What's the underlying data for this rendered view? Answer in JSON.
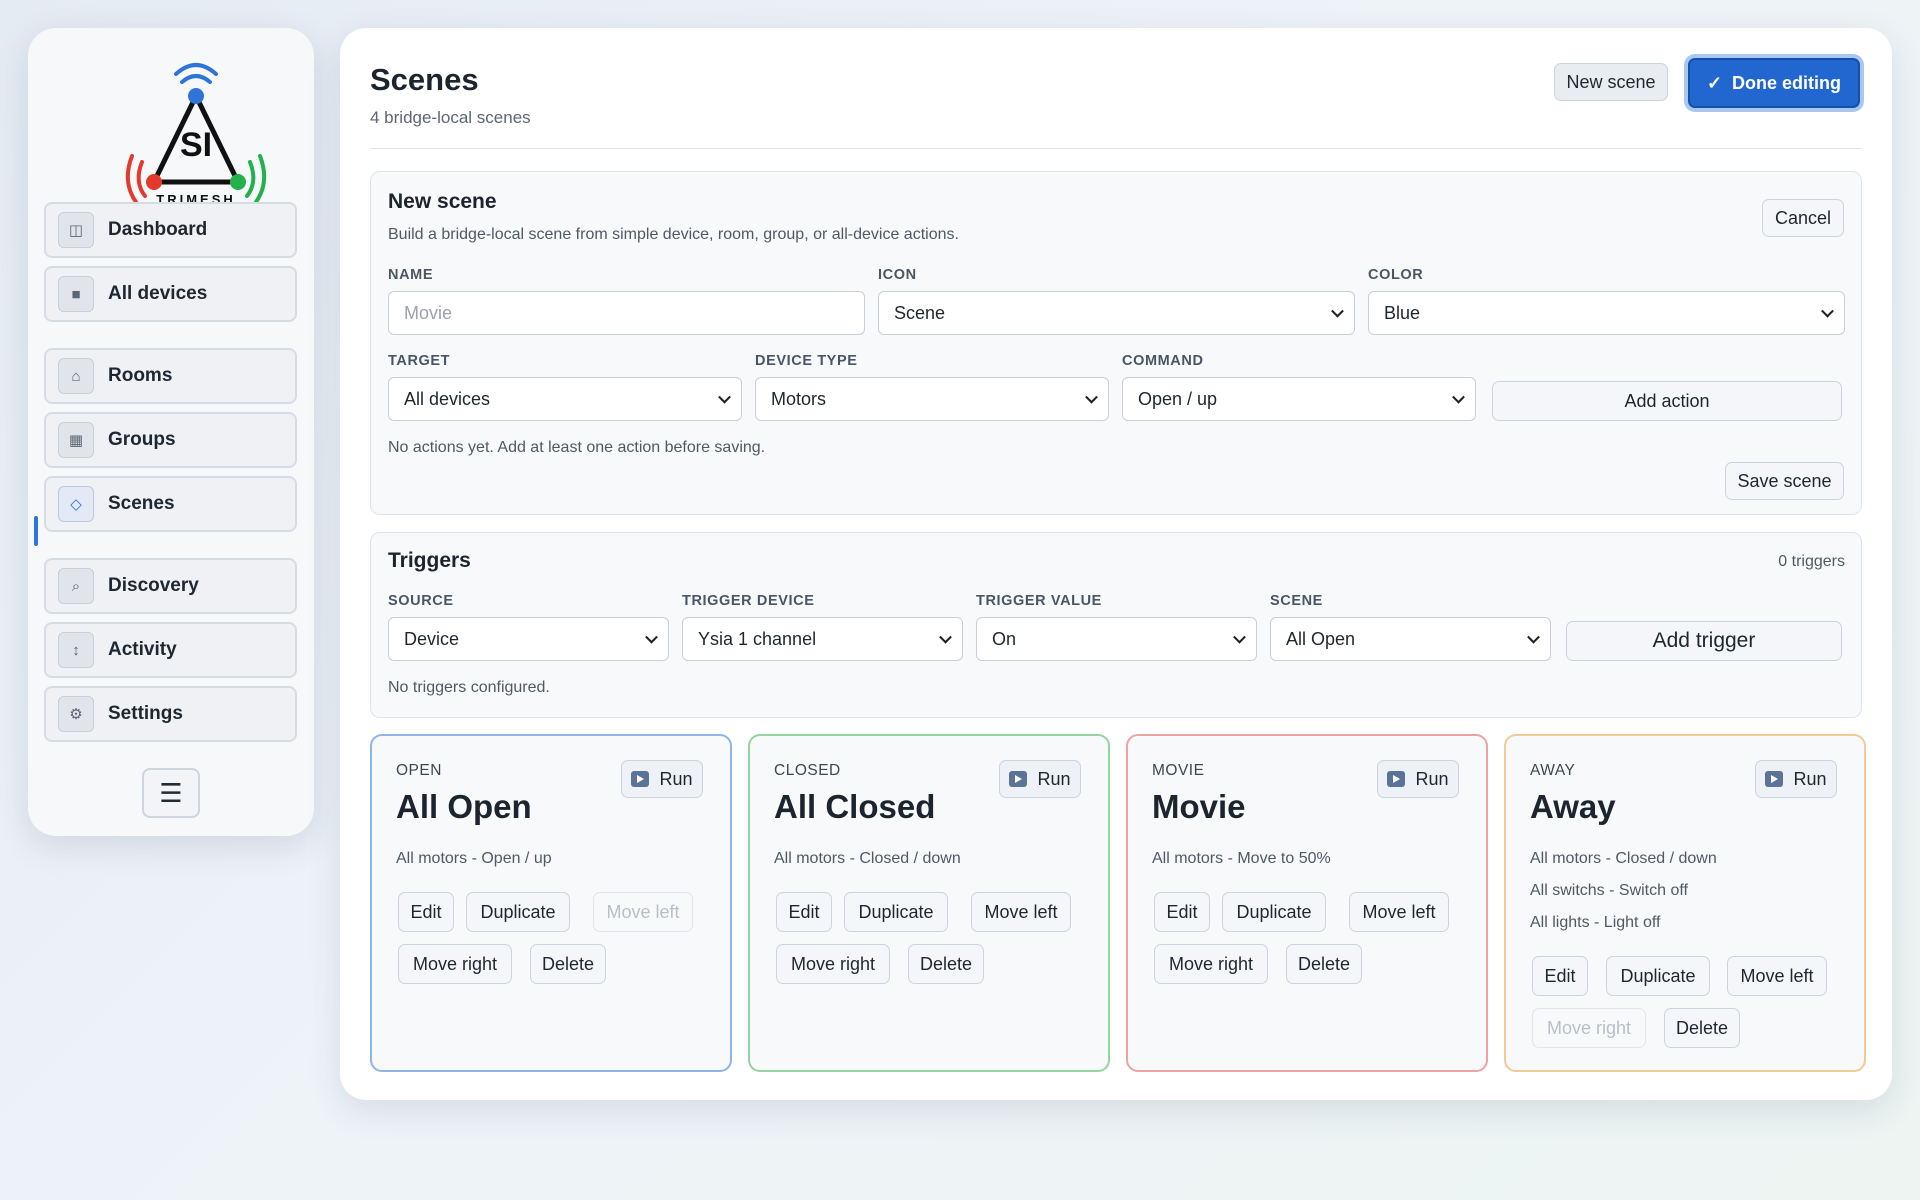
{
  "brand": {
    "name": "TRIMESH",
    "mark": "SI",
    "colors": {
      "blue": "#2f74d8",
      "red": "#e23b2e",
      "green": "#22b14c",
      "dark": "#111111"
    }
  },
  "sidebar": {
    "items": [
      {
        "label": "Dashboard",
        "icon": "dashboard-icon",
        "glyph": "◫"
      },
      {
        "label": "All devices",
        "icon": "devices-icon",
        "glyph": "■"
      },
      {
        "label": "Rooms",
        "icon": "home-icon",
        "glyph": "⌂"
      },
      {
        "label": "Groups",
        "icon": "groups-icon",
        "glyph": "▦"
      },
      {
        "label": "Scenes",
        "icon": "diamond-icon",
        "glyph": "◇",
        "active": true
      },
      {
        "label": "Discovery",
        "icon": "search-icon",
        "glyph": "⌕"
      },
      {
        "label": "Activity",
        "icon": "activity-icon",
        "glyph": "↕"
      },
      {
        "label": "Settings",
        "icon": "gear-icon",
        "glyph": "⚙"
      }
    ],
    "menu_glyph": "☰"
  },
  "header": {
    "title": "Scenes",
    "subtitle": "4 bridge-local scenes",
    "new_scene_label": "New scene",
    "done_label": "Done editing",
    "done_glyph": "✓",
    "accent": "#2167cf"
  },
  "new_scene": {
    "title": "New scene",
    "description": "Build a bridge-local scene from simple device, room, group, or all-device actions.",
    "cancel_label": "Cancel",
    "name_label": "NAME",
    "name_placeholder": "Movie",
    "icon_label": "ICON",
    "icon_value": "Scene",
    "color_label": "COLOR",
    "color_value": "Blue",
    "target_label": "TARGET",
    "target_value": "All devices",
    "device_type_label": "DEVICE TYPE",
    "device_type_value": "Motors",
    "command_label": "COMMAND",
    "command_value": "Open / up",
    "add_action_label": "Add action",
    "empty_note": "No actions yet. Add at least one action before saving.",
    "save_label": "Save scene"
  },
  "triggers": {
    "title": "Triggers",
    "count": "0 triggers",
    "source_label": "SOURCE",
    "source_value": "Device",
    "trigger_device_label": "TRIGGER DEVICE",
    "trigger_device_value": "Ysia 1 channel",
    "trigger_value_label": "TRIGGER VALUE",
    "trigger_value_value": "On",
    "scene_label": "SCENE",
    "scene_value": "All Open",
    "add_label": "Add trigger",
    "empty_note": "No triggers configured."
  },
  "scenes": [
    {
      "eyebrow": "OPEN",
      "title": "All Open",
      "color": "#8fb4e6",
      "actions": [
        "All motors - Open / up"
      ],
      "run_label": "Run",
      "edit_label": "Edit",
      "duplicate_label": "Duplicate",
      "move_left_label": "Move left",
      "move_right_label": "Move right",
      "delete_label": "Delete",
      "move_left_disabled": true,
      "move_right_disabled": false
    },
    {
      "eyebrow": "CLOSED",
      "title": "All Closed",
      "color": "#93d4a0",
      "actions": [
        "All motors - Closed / down"
      ],
      "run_label": "Run",
      "edit_label": "Edit",
      "duplicate_label": "Duplicate",
      "move_left_label": "Move left",
      "move_right_label": "Move right",
      "delete_label": "Delete",
      "move_left_disabled": false,
      "move_right_disabled": false
    },
    {
      "eyebrow": "MOVIE",
      "title": "Movie",
      "color": "#eea3a3",
      "actions": [
        "All motors - Move to 50%"
      ],
      "run_label": "Run",
      "edit_label": "Edit",
      "duplicate_label": "Duplicate",
      "move_left_label": "Move left",
      "move_right_label": "Move right",
      "delete_label": "Delete",
      "move_left_disabled": false,
      "move_right_disabled": false
    },
    {
      "eyebrow": "AWAY",
      "title": "Away",
      "color": "#f3c995",
      "actions": [
        "All motors - Closed / down",
        "All switchs - Switch off",
        "All lights - Light off"
      ],
      "run_label": "Run",
      "edit_label": "Edit",
      "duplicate_label": "Duplicate",
      "move_left_label": "Move left",
      "move_right_label": "Move right",
      "delete_label": "Delete",
      "move_left_disabled": false,
      "move_right_disabled": true
    }
  ]
}
